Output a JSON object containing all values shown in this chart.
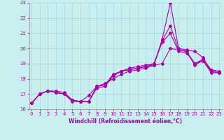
{
  "title": "Windchill (Refroidissement éolien,°C)",
  "background_color": "#c8eef0",
  "line_color": "#aa00aa",
  "grid_color": "#a0d8dc",
  "spine_color": "#888888",
  "x_min": 0,
  "x_max": 23,
  "y_min": 16,
  "y_max": 23,
  "series": [
    {
      "x": [
        0,
        1,
        2,
        3,
        4,
        5,
        6,
        7,
        8,
        9,
        10,
        11,
        12,
        13,
        14,
        15,
        16,
        17,
        18,
        19,
        20,
        21,
        22,
        23
      ],
      "y": [
        16.4,
        17.0,
        17.2,
        17.2,
        17.1,
        16.6,
        16.5,
        16.5,
        17.4,
        17.5,
        18.2,
        18.5,
        18.6,
        18.7,
        18.8,
        18.9,
        20.6,
        23.0,
        20.0,
        19.9,
        19.8,
        19.4,
        18.5,
        18.4
      ]
    },
    {
      "x": [
        0,
        1,
        2,
        3,
        4,
        5,
        6,
        7,
        8,
        9,
        10,
        11,
        12,
        13,
        14,
        15,
        16,
        17,
        18,
        19,
        20,
        21,
        22,
        23
      ],
      "y": [
        16.4,
        17.0,
        17.2,
        17.1,
        17.0,
        16.6,
        16.5,
        16.5,
        17.5,
        17.6,
        18.3,
        18.5,
        18.7,
        18.8,
        18.9,
        19.0,
        20.5,
        21.5,
        19.9,
        19.8,
        19.0,
        19.3,
        18.6,
        18.5
      ]
    },
    {
      "x": [
        0,
        1,
        2,
        3,
        4,
        5,
        6,
        7,
        8,
        9,
        10,
        11,
        12,
        13,
        14,
        15,
        16,
        17,
        18,
        19,
        20,
        21,
        22,
        23
      ],
      "y": [
        16.4,
        17.0,
        17.2,
        17.1,
        17.0,
        16.6,
        16.5,
        16.5,
        17.5,
        17.6,
        18.2,
        18.5,
        18.6,
        18.7,
        18.8,
        19.0,
        20.4,
        21.0,
        19.8,
        19.7,
        19.0,
        19.2,
        18.5,
        18.4
      ]
    },
    {
      "x": [
        0,
        1,
        2,
        3,
        4,
        5,
        6,
        7,
        8,
        9,
        10,
        11,
        12,
        13,
        14,
        15,
        16,
        17,
        18,
        19,
        20,
        21,
        22,
        23
      ],
      "y": [
        16.4,
        17.0,
        17.2,
        17.1,
        17.0,
        16.5,
        16.5,
        16.9,
        17.5,
        17.7,
        18.0,
        18.3,
        18.5,
        18.6,
        18.7,
        18.9,
        19.0,
        20.0,
        19.9,
        19.8,
        18.9,
        19.2,
        18.4,
        18.4
      ]
    }
  ],
  "tick_labelsize": 5.0,
  "xlabel_fontsize": 5.5,
  "linewidth": 0.8,
  "markersize": 2.0
}
